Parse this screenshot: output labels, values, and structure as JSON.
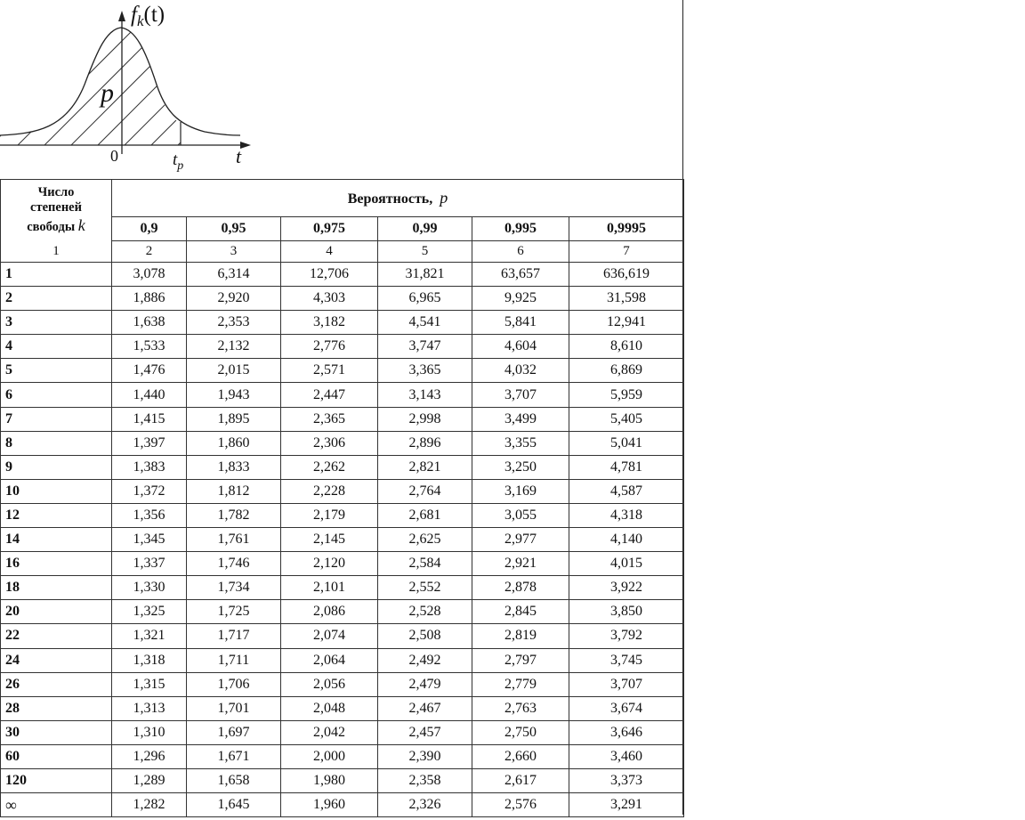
{
  "figure": {
    "y_axis_label": "f",
    "y_axis_subscript": "k",
    "y_axis_argument": "(t)",
    "area_label": "p",
    "origin_label": "0",
    "quantile_label": "t",
    "quantile_subscript": "p",
    "x_axis_label": "t"
  },
  "table": {
    "dof_header_line1": "Число",
    "dof_header_line2": "степеней",
    "dof_header_line3": "свободы",
    "dof_symbol": "k",
    "probability_header": "Вероятность,",
    "probability_symbol": "p",
    "probabilities": [
      "0,9",
      "0,95",
      "0,975",
      "0,99",
      "0,995",
      "0,9995"
    ],
    "column_numbers": [
      "1",
      "2",
      "3",
      "4",
      "5",
      "6",
      "7"
    ],
    "rows": [
      {
        "k": "1",
        "values": [
          "3,078",
          "6,314",
          "12,706",
          "31,821",
          "63,657",
          "636,619"
        ]
      },
      {
        "k": "2",
        "values": [
          "1,886",
          "2,920",
          "4,303",
          "6,965",
          "9,925",
          "31,598"
        ]
      },
      {
        "k": "3",
        "values": [
          "1,638",
          "2,353",
          "3,182",
          "4,541",
          "5,841",
          "12,941"
        ]
      },
      {
        "k": "4",
        "values": [
          "1,533",
          "2,132",
          "2,776",
          "3,747",
          "4,604",
          "8,610"
        ]
      },
      {
        "k": "5",
        "values": [
          "1,476",
          "2,015",
          "2,571",
          "3,365",
          "4,032",
          "6,869"
        ]
      },
      {
        "k": "6",
        "values": [
          "1,440",
          "1,943",
          "2,447",
          "3,143",
          "3,707",
          "5,959"
        ]
      },
      {
        "k": "7",
        "values": [
          "1,415",
          "1,895",
          "2,365",
          "2,998",
          "3,499",
          "5,405"
        ]
      },
      {
        "k": "8",
        "values": [
          "1,397",
          "1,860",
          "2,306",
          "2,896",
          "3,355",
          "5,041"
        ]
      },
      {
        "k": "9",
        "values": [
          "1,383",
          "1,833",
          "2,262",
          "2,821",
          "3,250",
          "4,781"
        ]
      },
      {
        "k": "10",
        "values": [
          "1,372",
          "1,812",
          "2,228",
          "2,764",
          "3,169",
          "4,587"
        ]
      },
      {
        "k": "12",
        "values": [
          "1,356",
          "1,782",
          "2,179",
          "2,681",
          "3,055",
          "4,318"
        ]
      },
      {
        "k": "14",
        "values": [
          "1,345",
          "1,761",
          "2,145",
          "2,625",
          "2,977",
          "4,140"
        ]
      },
      {
        "k": "16",
        "values": [
          "1,337",
          "1,746",
          "2,120",
          "2,584",
          "2,921",
          "4,015"
        ]
      },
      {
        "k": "18",
        "values": [
          "1,330",
          "1,734",
          "2,101",
          "2,552",
          "2,878",
          "3,922"
        ]
      },
      {
        "k": "20",
        "values": [
          "1,325",
          "1,725",
          "2,086",
          "2,528",
          "2,845",
          "3,850"
        ]
      },
      {
        "k": "22",
        "values": [
          "1,321",
          "1,717",
          "2,074",
          "2,508",
          "2,819",
          "3,792"
        ]
      },
      {
        "k": "24",
        "values": [
          "1,318",
          "1,711",
          "2,064",
          "2,492",
          "2,797",
          "3,745"
        ]
      },
      {
        "k": "26",
        "values": [
          "1,315",
          "1,706",
          "2,056",
          "2,479",
          "2,779",
          "3,707"
        ]
      },
      {
        "k": "28",
        "values": [
          "1,313",
          "1,701",
          "2,048",
          "2,467",
          "2,763",
          "3,674"
        ]
      },
      {
        "k": "30",
        "values": [
          "1,310",
          "1,697",
          "2,042",
          "2,457",
          "2,750",
          "3,646"
        ]
      },
      {
        "k": "60",
        "values": [
          "1,296",
          "1,671",
          "2,000",
          "2,390",
          "2,660",
          "3,460"
        ]
      },
      {
        "k": "120",
        "values": [
          "1,289",
          "1,658",
          "1,980",
          "2,358",
          "2,617",
          "3,373"
        ]
      },
      {
        "k": "∞",
        "values": [
          "1,282",
          "1,645",
          "1,960",
          "2,326",
          "2,576",
          "3,291"
        ]
      }
    ]
  }
}
